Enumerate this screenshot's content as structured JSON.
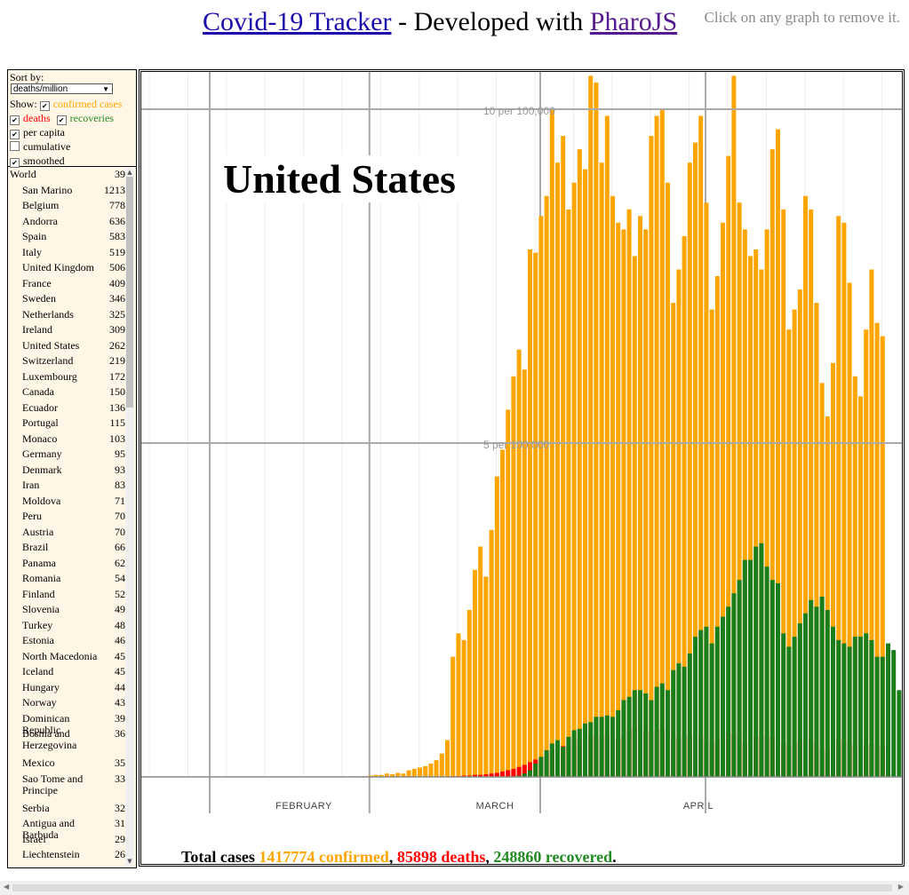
{
  "header": {
    "link1": "Covid-19 Tracker",
    "middle": " - Developed with ",
    "link2": "PharoJS",
    "hint": "Click on any graph to remove it."
  },
  "controls": {
    "sort_label": "Sort by:",
    "sort_value": "deaths/million",
    "show_label": "Show:",
    "confirmed_label": "confirmed cases",
    "deaths_label": "deaths",
    "recoveries_label": "recoveries",
    "per_capita_label": "per capita",
    "cumulative_label": "cumulative",
    "smoothed_label": "smoothed",
    "confirmed_checked": true,
    "deaths_checked": true,
    "recoveries_checked": true,
    "per_capita_checked": true,
    "cumulative_checked": false,
    "smoothed_checked": true
  },
  "countries": [
    {
      "name": "World",
      "value": "39"
    },
    {
      "name": "San Marino",
      "value": "1213"
    },
    {
      "name": "Belgium",
      "value": "778"
    },
    {
      "name": "Andorra",
      "value": "636"
    },
    {
      "name": "Spain",
      "value": "583"
    },
    {
      "name": "Italy",
      "value": "519"
    },
    {
      "name": "United Kingdom",
      "value": "506"
    },
    {
      "name": "France",
      "value": "409"
    },
    {
      "name": "Sweden",
      "value": "346"
    },
    {
      "name": "Netherlands",
      "value": "325"
    },
    {
      "name": "Ireland",
      "value": "309"
    },
    {
      "name": "United States",
      "value": "262"
    },
    {
      "name": "Switzerland",
      "value": "219"
    },
    {
      "name": "Luxembourg",
      "value": "172"
    },
    {
      "name": "Canada",
      "value": "150"
    },
    {
      "name": "Ecuador",
      "value": "136"
    },
    {
      "name": "Portugal",
      "value": "115"
    },
    {
      "name": "Monaco",
      "value": "103"
    },
    {
      "name": "Germany",
      "value": "95"
    },
    {
      "name": "Denmark",
      "value": "93"
    },
    {
      "name": "Iran",
      "value": "83"
    },
    {
      "name": "Moldova",
      "value": "71"
    },
    {
      "name": "Peru",
      "value": "70"
    },
    {
      "name": "Austria",
      "value": "70"
    },
    {
      "name": "Brazil",
      "value": "66"
    },
    {
      "name": "Panama",
      "value": "62"
    },
    {
      "name": "Romania",
      "value": "54"
    },
    {
      "name": "Finland",
      "value": "52"
    },
    {
      "name": "Slovenia",
      "value": "49"
    },
    {
      "name": "Turkey",
      "value": "48"
    },
    {
      "name": "Estonia",
      "value": "46"
    },
    {
      "name": "North Macedonia",
      "value": "45"
    },
    {
      "name": "Iceland",
      "value": "45"
    },
    {
      "name": "Hungary",
      "value": "44"
    },
    {
      "name": "Norway",
      "value": "43"
    },
    {
      "name": "Dominican Republic",
      "value": "39"
    },
    {
      "name": "Bosnia and Herzegovina",
      "value": "36"
    },
    {
      "name": "Mexico",
      "value": "35"
    },
    {
      "name": "Sao Tome and Principe",
      "value": "33"
    },
    {
      "name": "Serbia",
      "value": "32"
    },
    {
      "name": "Antigua and Barbuda",
      "value": "31"
    },
    {
      "name": "Israel",
      "value": "29"
    },
    {
      "name": "Liechtenstein",
      "value": "26"
    }
  ],
  "chart": {
    "country": "United States",
    "totals_prefix": "Total cases ",
    "total_confirmed": "1417774 confirmed",
    "total_deaths": "85898 deaths",
    "total_recovered": "248860 recovered",
    "sep1": ", ",
    "sep2": ", ",
    "end": "."
  },
  "chart_data": {
    "type": "bar",
    "stacked": false,
    "grid": true,
    "y_unit": "per 100,000 (daily, smoothed)",
    "y_ticks": [
      {
        "value": 5,
        "label": "5 per 100,000"
      },
      {
        "value": 10,
        "label": "10 per 100,000"
      }
    ],
    "ylim": [
      0,
      10.2
    ],
    "x_month_labels": [
      "February",
      "March",
      "April"
    ],
    "x_start": "2020-01-22",
    "series": [
      {
        "name": "confirmed cases",
        "color": "#ffa500",
        "values": [
          0,
          0,
          0,
          0,
          0,
          0,
          0,
          0,
          0,
          0,
          0,
          0,
          0,
          0,
          0,
          0,
          0,
          0,
          0,
          0,
          0,
          0,
          0,
          0,
          0,
          0,
          0,
          0,
          0,
          0,
          0,
          0,
          0,
          0,
          0,
          0,
          0,
          0,
          0.01,
          0,
          0.01,
          0.02,
          0.03,
          0.03,
          0.05,
          0.04,
          0.06,
          0.05,
          0.1,
          0.12,
          0.14,
          0.16,
          0.2,
          0.25,
          0.35,
          0.55,
          1.8,
          2.15,
          2.05,
          2.5,
          3.1,
          3.45,
          3.0,
          3.7,
          4.5,
          4.9,
          5.5,
          6.0,
          6.4,
          6.1,
          7.9,
          7.85,
          8.4,
          8.7,
          10.0,
          9.2,
          9.6,
          8.5,
          8.9,
          9.4,
          9.1,
          10.5,
          10.4,
          9.2,
          9.9,
          8.7,
          8.3,
          8.2,
          8.5,
          7.8,
          8.4,
          8.2,
          9.6,
          9.9,
          10.0,
          8.9,
          7.1,
          7.6,
          8.1,
          9.2,
          9.5,
          9.9,
          8.6,
          7.0,
          7.5,
          8.3,
          9.3,
          10.5,
          8.6,
          8.2,
          7.8,
          7.9,
          7.6,
          8.2,
          9.4,
          9.7,
          8.5,
          6.7,
          7.0,
          7.3,
          8.7,
          8.5,
          7.1,
          5.9,
          5.4,
          6.2,
          8.4,
          8.3,
          7.4,
          6.0,
          5.7,
          6.7,
          7.6,
          6.8,
          6.6
        ]
      },
      {
        "name": "deaths",
        "color": "#ff0000",
        "values": [
          0,
          0,
          0,
          0,
          0,
          0,
          0,
          0,
          0,
          0,
          0,
          0,
          0,
          0,
          0,
          0,
          0,
          0,
          0,
          0,
          0,
          0,
          0,
          0,
          0,
          0,
          0,
          0,
          0,
          0,
          0,
          0,
          0,
          0,
          0,
          0,
          0,
          0,
          0,
          0,
          0,
          0,
          0,
          0,
          0,
          0,
          0,
          0,
          0,
          0,
          0,
          0,
          0,
          0,
          0,
          0,
          0.01,
          0.01,
          0.02,
          0.02,
          0.03,
          0.03,
          0.04,
          0.05,
          0.06,
          0.08,
          0.1,
          0.12,
          0.15,
          0.18,
          0.22,
          0.26,
          0.3,
          0.35,
          0.4,
          0.45,
          0.46,
          0.5,
          0.55,
          0.58,
          0.6,
          0.62,
          0.62,
          0.6,
          0.64,
          0.6,
          0.58,
          0.62,
          0.72,
          0.75,
          0.7,
          0.7,
          0.68,
          0.7,
          0.72,
          0.67,
          0.6,
          0.56,
          0.6,
          0.62,
          0.65,
          0.62,
          0.55,
          0.52,
          0.55,
          0.6,
          0.65,
          0.65,
          0.62,
          0.5,
          0.55,
          0.6,
          0.62,
          0.62,
          0.6,
          0.58,
          0.5,
          0.45,
          0.5,
          0.55,
          0.57,
          0.55,
          0.5,
          0.42,
          0.4,
          0.45,
          0.55,
          0.55,
          0.5,
          0.45,
          0.42,
          0.48,
          0.5,
          0.48,
          0.45
        ]
      },
      {
        "name": "recoveries",
        "color": "#1a7f1a",
        "values": [
          0,
          0,
          0,
          0,
          0,
          0,
          0,
          0,
          0,
          0,
          0,
          0,
          0,
          0,
          0,
          0,
          0,
          0,
          0,
          0,
          0,
          0,
          0,
          0,
          0,
          0,
          0,
          0,
          0,
          0,
          0,
          0,
          0,
          0,
          0,
          0,
          0,
          0,
          0,
          0,
          0,
          0,
          0,
          0,
          0,
          0,
          0,
          0,
          0,
          0,
          0,
          0,
          0,
          0,
          0,
          0,
          0,
          0,
          0,
          0,
          0,
          0,
          0,
          0,
          0,
          0,
          0,
          0,
          0.02,
          0.05,
          0.1,
          0.2,
          0.3,
          0.4,
          0.5,
          0.55,
          0.45,
          0.6,
          0.7,
          0.72,
          0.8,
          0.82,
          0.9,
          0.9,
          0.92,
          0.9,
          1.0,
          1.15,
          1.2,
          1.3,
          1.3,
          1.25,
          1.15,
          1.35,
          1.4,
          1.3,
          1.6,
          1.7,
          1.65,
          1.85,
          2.1,
          2.2,
          2.25,
          2.0,
          2.25,
          2.4,
          2.55,
          2.75,
          2.95,
          3.25,
          3.25,
          3.45,
          3.5,
          3.15,
          2.95,
          2.9,
          2.15,
          1.95,
          2.1,
          2.3,
          2.45,
          2.65,
          2.55,
          2.7,
          2.5,
          2.25,
          2.05,
          2.0,
          1.95,
          2.1,
          2.1,
          2.15,
          2.05,
          1.8,
          1.8,
          2.0,
          1.9,
          1.3,
          1.6
        ]
      }
    ]
  }
}
